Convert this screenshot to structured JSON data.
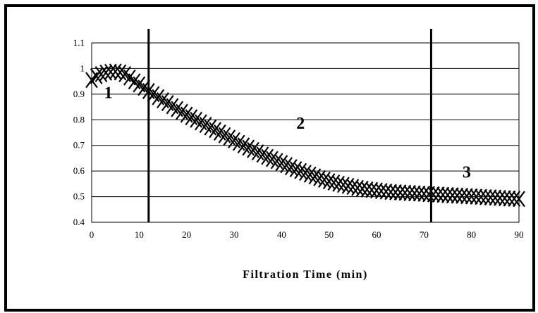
{
  "chart_data": {
    "type": "scatter",
    "title": "",
    "xlabel": "Filtration Time (min)",
    "ylabel": "",
    "xlim": [
      0,
      90
    ],
    "ylim": [
      0.4,
      1.1
    ],
    "x_ticks": [
      "0",
      "10",
      "20",
      "30",
      "40",
      "50",
      "60",
      "70",
      "80",
      "90"
    ],
    "y_ticks": [
      "0.4",
      "0.5",
      "0.6",
      "0.7",
      "0.8",
      "0.9",
      "1",
      "1.1"
    ],
    "grid": "horizontal",
    "marker": "x",
    "vertical_lines": [
      12,
      71.5
    ],
    "region_labels": [
      {
        "text": "1",
        "x": 3.5,
        "y": 0.885
      },
      {
        "text": "2",
        "x": 44,
        "y": 0.765
      },
      {
        "text": "3",
        "x": 79,
        "y": 0.575
      }
    ],
    "series": [
      {
        "color": "#000000",
        "x": [
          0,
          1,
          2,
          3,
          4,
          5,
          6,
          7,
          8,
          9,
          10,
          11,
          12,
          13,
          14,
          15,
          16,
          17,
          18,
          19,
          20,
          21,
          22,
          23,
          24,
          25,
          26,
          27,
          28,
          29,
          30,
          31,
          32,
          33,
          34,
          35,
          36,
          37,
          38,
          39,
          40,
          41,
          42,
          43,
          44,
          45,
          46,
          47,
          48,
          49,
          50,
          51,
          52,
          53,
          54,
          55,
          56,
          57,
          58,
          59,
          60,
          61,
          62,
          63,
          64,
          65,
          66,
          67,
          68,
          69,
          70,
          71,
          72,
          73,
          74,
          75,
          76,
          77,
          78,
          79,
          80,
          81,
          82,
          83,
          84,
          85,
          86,
          87,
          88,
          89,
          90
        ],
        "y": [
          0.955,
          0.97,
          0.978,
          0.984,
          0.987,
          0.988,
          0.985,
          0.978,
          0.965,
          0.95,
          0.938,
          0.925,
          0.912,
          0.9,
          0.888,
          0.876,
          0.865,
          0.853,
          0.842,
          0.831,
          0.82,
          0.81,
          0.8,
          0.79,
          0.78,
          0.77,
          0.76,
          0.75,
          0.74,
          0.73,
          0.72,
          0.71,
          0.7,
          0.691,
          0.682,
          0.673,
          0.664,
          0.655,
          0.647,
          0.639,
          0.631,
          0.623,
          0.615,
          0.607,
          0.6,
          0.593,
          0.586,
          0.579,
          0.572,
          0.566,
          0.56,
          0.555,
          0.55,
          0.546,
          0.542,
          0.538,
          0.534,
          0.531,
          0.528,
          0.526,
          0.524,
          0.522,
          0.52,
          0.518,
          0.517,
          0.516,
          0.515,
          0.514,
          0.513,
          0.512,
          0.511,
          0.51,
          0.509,
          0.508,
          0.507,
          0.506,
          0.505,
          0.504,
          0.503,
          0.502,
          0.501,
          0.5,
          0.499,
          0.498,
          0.497,
          0.496,
          0.495,
          0.494,
          0.493,
          0.492,
          0.491
        ]
      }
    ]
  }
}
